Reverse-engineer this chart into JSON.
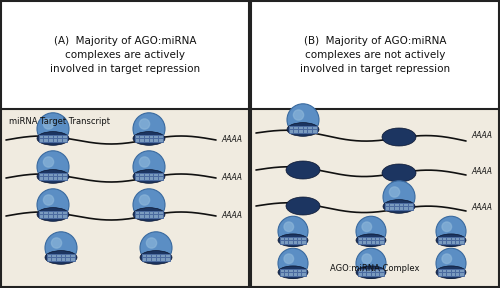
{
  "bg_color": "#f0ebe0",
  "header_bg": "#ffffff",
  "border_color": "#222222",
  "title_A": "(A)  Majority of AGO:miRNA\ncomplexes are actively\ninvolved in target repression",
  "title_B": "(B)  Majority of AGO:miRNA\ncomplexes are not actively\ninvolved in target repression",
  "label_A": "miRNA Target Transcript",
  "label_B": "AGO:miRNA Complex",
  "light_blue": "#5b8ec4",
  "light_blue_hi": "#8ab4d8",
  "dark_blue": "#1c3561",
  "grid_color": "#7a9bbf",
  "grid_line": "#4a6a9f",
  "text_color": "#111111",
  "line_color": "#111111",
  "figsize": [
    5.0,
    2.88
  ],
  "dpi": 100
}
